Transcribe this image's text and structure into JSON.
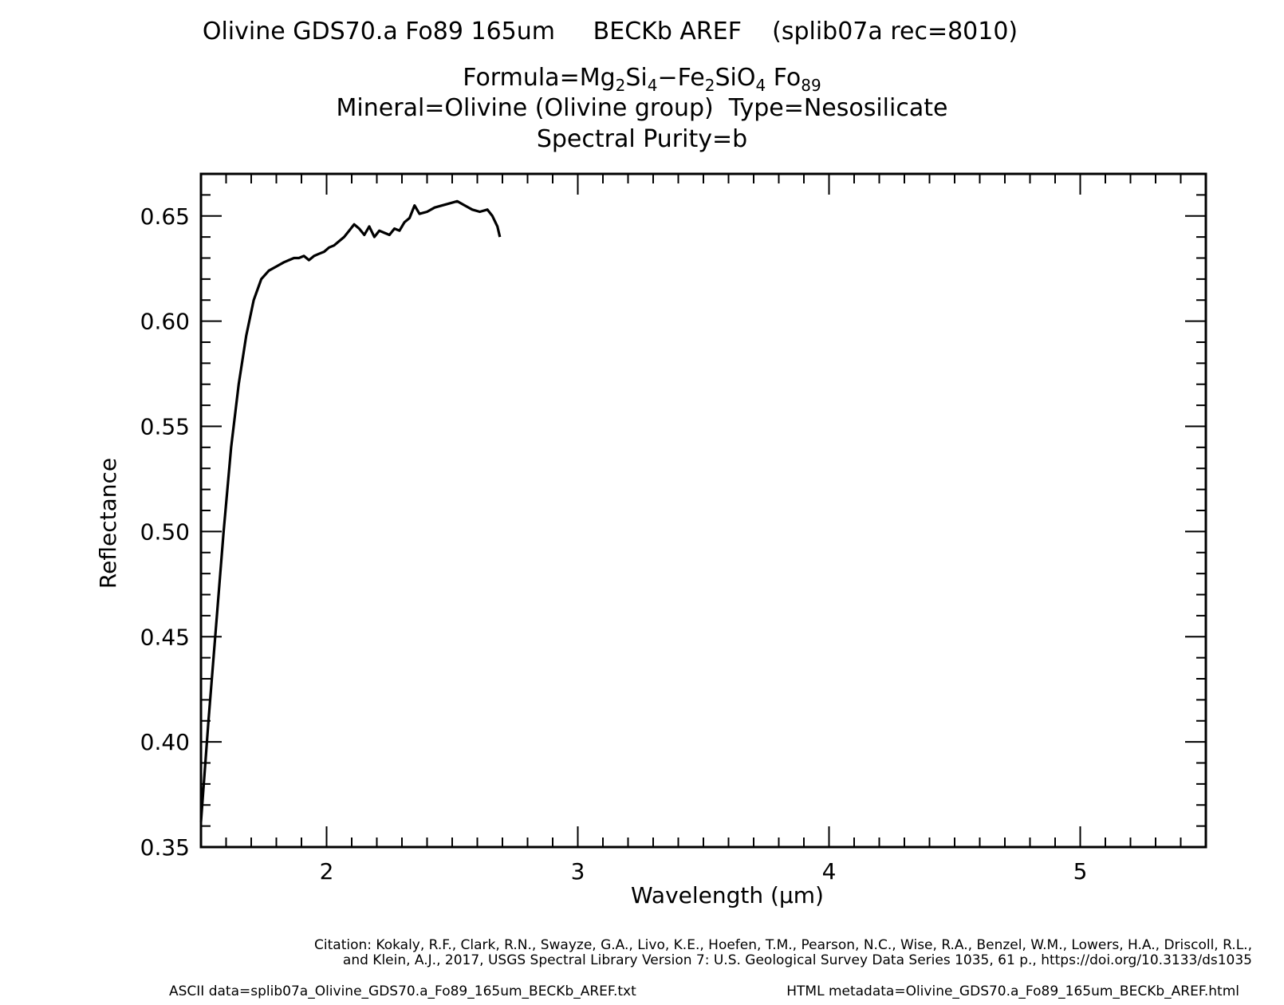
{
  "header": {
    "title": "Olivine GDS70.a Fo89 165um     BECKb AREF    (splib07a rec=8010)",
    "formula_prefix": "Formula=Mg",
    "formula_sub1": "2",
    "formula_mid1": "Si",
    "formula_sub2": "4",
    "formula_mid2": "−Fe",
    "formula_sub3": "2",
    "formula_mid3": "SiO",
    "formula_sub4": "4",
    "formula_mid4": " Fo",
    "formula_sub5": "89",
    "mineral": "Mineral=Olivine (Olivine group)  Type=Nesosilicate",
    "purity": "Spectral Purity=b"
  },
  "footer": {
    "citation_line1": "Citation: Kokaly, R.F., Clark, R.N., Swayze, G.A., Livo, K.E., Hoefen, T.M., Pearson, N.C., Wise, R.A., Benzel, W.M., Lowers, H.A., Driscoll, R.L.,",
    "citation_line2": "and Klein, A.J., 2017, USGS Spectral Library Version 7: U.S. Geological Survey Data Series 1035, 61 p., https://doi.org/10.3133/ds1035",
    "ascii": "ASCII data=splib07a_Olivine_GDS70.a_Fo89_165um_BECKb_AREF.txt",
    "html": "HTML metadata=Olivine_GDS70.a_Fo89_165um_BECKb_AREF.html"
  },
  "chart_data": {
    "type": "line",
    "xlabel": "Wavelength (μm)",
    "ylabel": "Reflectance",
    "xlim": [
      1.5,
      5.5
    ],
    "ylim": [
      0.35,
      0.67
    ],
    "xticks": [
      2,
      3,
      4,
      5
    ],
    "xtick_labels": [
      "2",
      "3",
      "4",
      "5"
    ],
    "yticks": [
      0.35,
      0.4,
      0.45,
      0.5,
      0.55,
      0.6,
      0.65
    ],
    "ytick_labels": [
      "0.35",
      "0.40",
      "0.45",
      "0.50",
      "0.55",
      "0.60",
      "0.65"
    ],
    "grid": false,
    "series": [
      {
        "color": "#000000",
        "x": [
          1.5,
          1.53,
          1.56,
          1.59,
          1.62,
          1.65,
          1.68,
          1.71,
          1.74,
          1.77,
          1.8,
          1.83,
          1.85,
          1.87,
          1.89,
          1.91,
          1.93,
          1.95,
          1.97,
          1.99,
          2.01,
          2.03,
          2.05,
          2.07,
          2.09,
          2.11,
          2.13,
          2.15,
          2.17,
          2.19,
          2.21,
          2.23,
          2.25,
          2.27,
          2.29,
          2.31,
          2.33,
          2.35,
          2.37,
          2.4,
          2.43,
          2.46,
          2.49,
          2.52,
          2.55,
          2.58,
          2.61,
          2.64,
          2.66,
          2.68,
          2.69
        ],
        "y": [
          0.362,
          0.41,
          0.455,
          0.5,
          0.54,
          0.57,
          0.593,
          0.61,
          0.62,
          0.624,
          0.626,
          0.628,
          0.629,
          0.63,
          0.63,
          0.631,
          0.629,
          0.631,
          0.632,
          0.633,
          0.635,
          0.636,
          0.638,
          0.64,
          0.643,
          0.646,
          0.644,
          0.641,
          0.645,
          0.64,
          0.643,
          0.642,
          0.641,
          0.644,
          0.643,
          0.647,
          0.649,
          0.655,
          0.651,
          0.652,
          0.654,
          0.655,
          0.656,
          0.657,
          0.655,
          0.653,
          0.652,
          0.653,
          0.65,
          0.645,
          0.64
        ]
      }
    ]
  }
}
